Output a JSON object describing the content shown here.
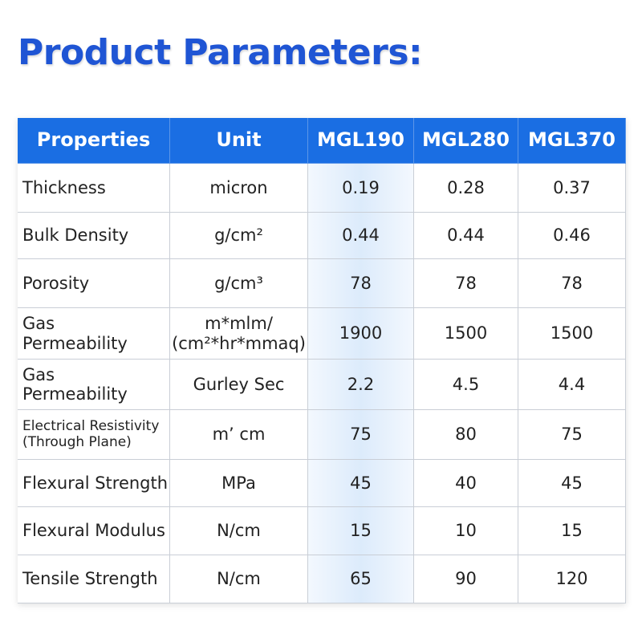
{
  "title": "Product Parameters:",
  "table": {
    "header": [
      "Properties",
      "Unit",
      "MGL190",
      "MGL280",
      "MGL370"
    ],
    "rows": [
      [
        "Thickness",
        "micron",
        "0.19",
        "0.28",
        "0.37"
      ],
      [
        "Bulk Density",
        "g/cm²",
        "0.44",
        "0.44",
        "0.46"
      ],
      [
        "Porosity",
        "g/cm³",
        "78",
        "78",
        "78"
      ],
      [
        [
          "Gas",
          "Permeability"
        ],
        [
          "m*mlm/",
          "(cm²*hr*mmaq)"
        ],
        "1900",
        "1500",
        "1500"
      ],
      [
        [
          "Gas",
          "Permeability"
        ],
        "Gurley Sec",
        "2.2",
        "4.5",
        "4.4"
      ],
      [
        [
          "Electrical Resistivity",
          "(Through Plane)"
        ],
        "m’  cm",
        "75",
        "80",
        "75"
      ],
      [
        "Flexural Strength",
        "MPa",
        "45",
        "40",
        "45"
      ],
      [
        "Flexural Modulus",
        "N/cm",
        "15",
        "10",
        "15"
      ],
      [
        "Tensile Strength",
        "N/cm",
        "65",
        "90",
        "120"
      ]
    ]
  }
}
